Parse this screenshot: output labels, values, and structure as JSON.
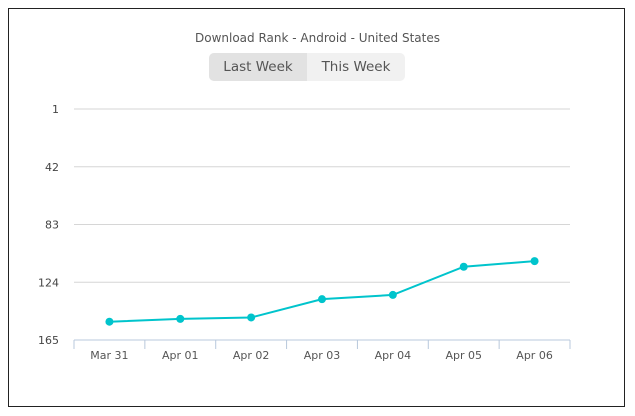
{
  "chart_data": {
    "type": "line",
    "title": "Download Rank - Android - United States",
    "categories": [
      "Mar 31",
      "Apr 01",
      "Apr 02",
      "Apr 03",
      "Apr 04",
      "Apr 05",
      "Apr 06"
    ],
    "series": [
      {
        "values": [
          152,
          150,
          149,
          136,
          133,
          113,
          109
        ]
      }
    ],
    "yticks": [
      "1",
      "42",
      "83",
      "124",
      "165"
    ],
    "ylim": [
      1,
      165
    ],
    "y_reversed": true,
    "grid": true,
    "line_color": "#00c4cc"
  },
  "toggle": {
    "options": [
      "Last Week",
      "This Week"
    ],
    "selected": "Last Week"
  }
}
